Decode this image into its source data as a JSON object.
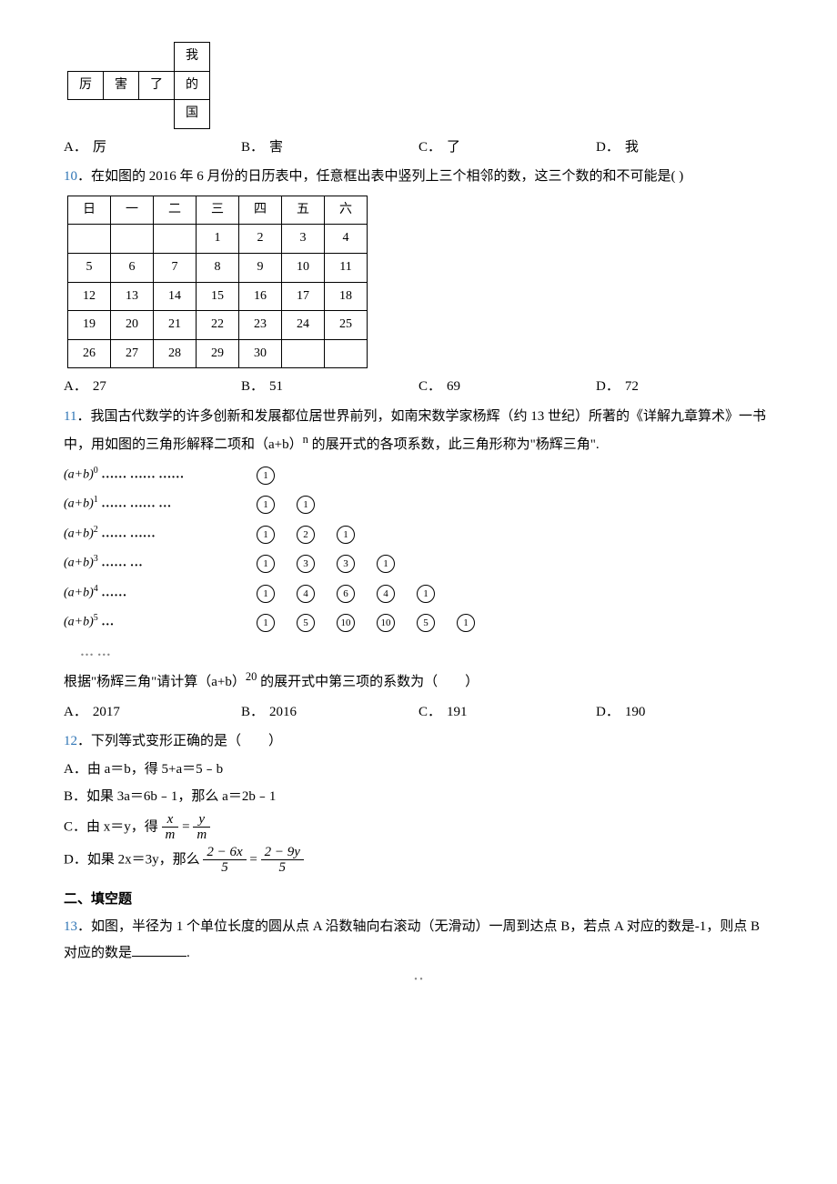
{
  "cross": {
    "r0": [
      "",
      "",
      "",
      "我"
    ],
    "r1": [
      "厉",
      "害",
      "了",
      "的"
    ],
    "r2": [
      "",
      "",
      "",
      "国"
    ]
  },
  "q9": {
    "opts": {
      "A": "厉",
      "B": "害",
      "C": "了",
      "D": "我"
    }
  },
  "q10": {
    "num": "10",
    "text": "．在如图的 2016 年 6 月份的日历表中，任意框出表中竖列上三个相邻的数，这三个数的和不可能是(        )",
    "head": [
      "日",
      "一",
      "二",
      "三",
      "四",
      "五",
      "六"
    ],
    "rows": [
      [
        "",
        "",
        "",
        "1",
        "2",
        "3",
        "4"
      ],
      [
        "5",
        "6",
        "7",
        "8",
        "9",
        "10",
        "11"
      ],
      [
        "12",
        "13",
        "14",
        "15",
        "16",
        "17",
        "18"
      ],
      [
        "19",
        "20",
        "21",
        "22",
        "23",
        "24",
        "25"
      ],
      [
        "26",
        "27",
        "28",
        "29",
        "30",
        "",
        ""
      ]
    ],
    "opts": {
      "A": "27",
      "B": "51",
      "C": "69",
      "D": "72"
    }
  },
  "q11": {
    "num": "11",
    "text1": "．我国古代数学的许多创新和发展都位居世界前列，如南宋数学家杨辉（约 13 世纪）所著的《详解九章算术》一书中，用如图的三角形解释二项和（a+b）",
    "text1b": " 的展开式的各项系数，此三角形称为\"杨辉三角\".",
    "exp_n": "n",
    "tri": [
      {
        "exp": "0",
        "dots": "…… …… ……",
        "nums": [
          "1"
        ]
      },
      {
        "exp": "1",
        "dots": "…… …… …",
        "nums": [
          "1",
          "1"
        ]
      },
      {
        "exp": "2",
        "dots": "…… ……",
        "nums": [
          "1",
          "2",
          "1"
        ]
      },
      {
        "exp": "3",
        "dots": "…… …",
        "nums": [
          "1",
          "3",
          "3",
          "1"
        ]
      },
      {
        "exp": "4",
        "dots": "……",
        "nums": [
          "1",
          "4",
          "6",
          "4",
          "1"
        ]
      },
      {
        "exp": "5",
        "dots": "…",
        "nums": [
          "1",
          "5",
          "10",
          "10",
          "5",
          "1"
        ]
      }
    ],
    "tri_tail": "… …",
    "ask1": "根据\"杨辉三角\"请计算（a+b）",
    "ask_exp": "20",
    "ask2": " 的展开式中第三项的系数为（　　）",
    "opts": {
      "A": "2017",
      "B": "2016",
      "C": "191",
      "D": "190"
    }
  },
  "q12": {
    "num": "12",
    "text": "．下列等式变形正确的是（　　）",
    "A": "A．由 a＝b，得 5+a＝5﹣b",
    "B": "B．如果 3a＝6b﹣1，那么 a＝2b﹣1",
    "C_pre": "C．由 x＝y，得 ",
    "C_lnum": "x",
    "C_lden": "m",
    "C_eq": " = ",
    "C_rnum": "y",
    "C_rden": "m",
    "D_pre": "D．如果 2x＝3y，那么 ",
    "D_lnum": "2 − 6x",
    "D_lden": "5",
    "D_eq": " = ",
    "D_rnum": "2 − 9y",
    "D_rden": "5"
  },
  "section2": "二、填空题",
  "q13": {
    "num": "13",
    "text1": "．如图，半径为 1 个单位长度的圆从点 A 沿数轴向右滚动（无滑动）一周到达点 B，若点 A 对应的数是-1，则点 B 对应的数是",
    "text2": "."
  }
}
